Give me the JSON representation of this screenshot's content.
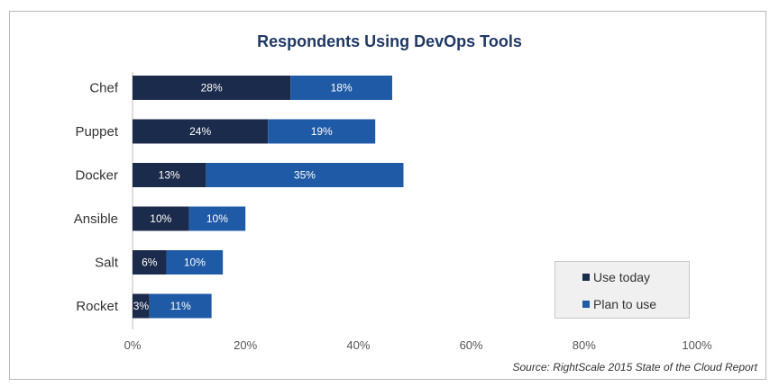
{
  "chart_data": {
    "type": "bar",
    "orientation": "horizontal",
    "stacked": true,
    "title": "Respondents Using DevOps Tools",
    "categories": [
      "Chef",
      "Puppet",
      "Docker",
      "Ansible",
      "Salt",
      "Rocket"
    ],
    "series": [
      {
        "name": "Use today",
        "color": "#1b2b4b",
        "values": [
          28,
          24,
          13,
          10,
          6,
          3
        ],
        "labels": [
          "28%",
          "24%",
          "13%",
          "10%",
          "6%",
          "3%"
        ]
      },
      {
        "name": "Plan to use",
        "color": "#1f5aa6",
        "values": [
          18,
          19,
          35,
          10,
          10,
          11
        ],
        "labels": [
          "18%",
          "19%",
          "35%",
          "10%",
          "10%",
          "11%"
        ]
      }
    ],
    "xlim": [
      0,
      100
    ],
    "xticks": [
      0,
      20,
      40,
      60,
      80,
      100
    ],
    "xtick_labels": [
      "0%",
      "20%",
      "40%",
      "60%",
      "80%",
      "100%"
    ],
    "legend_position": "bottom-right",
    "source": "Source: RightScale 2015 State of the Cloud Report"
  }
}
